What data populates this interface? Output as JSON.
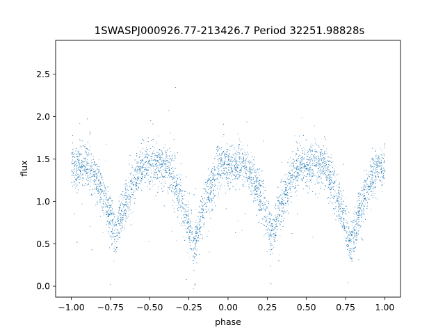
{
  "chart_data": {
    "type": "scatter",
    "title": "1SWASPJ000926.77-213426.7 Period 32251.98828s",
    "xlabel": "phase",
    "ylabel": "flux",
    "xlim": [
      -1.1,
      1.1
    ],
    "ylim": [
      -0.13,
      2.9
    ],
    "x_ticks": [
      -1.0,
      -0.75,
      -0.5,
      -0.25,
      0.0,
      0.25,
      0.5,
      0.75,
      1.0
    ],
    "x_tick_labels": [
      "−1.00",
      "−0.75",
      "−0.50",
      "−0.25",
      "0.00",
      "0.25",
      "0.50",
      "0.75",
      "1.00"
    ],
    "y_ticks": [
      0.0,
      0.5,
      1.0,
      1.5,
      2.0,
      2.5
    ],
    "y_tick_labels": [
      "0.0",
      "0.5",
      "1.0",
      "1.5",
      "2.0",
      "2.5"
    ],
    "grid": false,
    "legend": false,
    "marker_color": "#1f77b4",
    "series": [
      {
        "phase_range": [
          -1.0,
          1.0
        ],
        "baseline_flux": 1.42,
        "scatter_sigma": 0.13,
        "minima": [
          {
            "phase": -0.72,
            "flux": 0.62
          },
          {
            "phase": -0.22,
            "flux": 0.48
          },
          {
            "phase": 0.28,
            "flux": 0.62
          },
          {
            "phase": 0.78,
            "flux": 0.48
          }
        ],
        "eclipse_half_width": 0.17,
        "points": [
          {
            "x": -1.0,
            "y": 1.42
          },
          {
            "x": -0.9,
            "y": 1.41
          },
          {
            "x": -0.8,
            "y": 1.05
          },
          {
            "x": -0.72,
            "y": 0.62
          },
          {
            "x": -0.65,
            "y": 1.05
          },
          {
            "x": -0.5,
            "y": 1.42
          },
          {
            "x": -0.35,
            "y": 1.3
          },
          {
            "x": -0.22,
            "y": 0.48
          },
          {
            "x": -0.1,
            "y": 1.3
          },
          {
            "x": 0.0,
            "y": 1.43
          },
          {
            "x": 0.15,
            "y": 1.32
          },
          {
            "x": 0.28,
            "y": 0.62
          },
          {
            "x": 0.4,
            "y": 1.3
          },
          {
            "x": 0.5,
            "y": 1.42
          },
          {
            "x": 0.65,
            "y": 1.32
          },
          {
            "x": 0.78,
            "y": 0.48
          },
          {
            "x": 0.9,
            "y": 1.3
          },
          {
            "x": 1.0,
            "y": 1.42
          }
        ]
      }
    ]
  }
}
